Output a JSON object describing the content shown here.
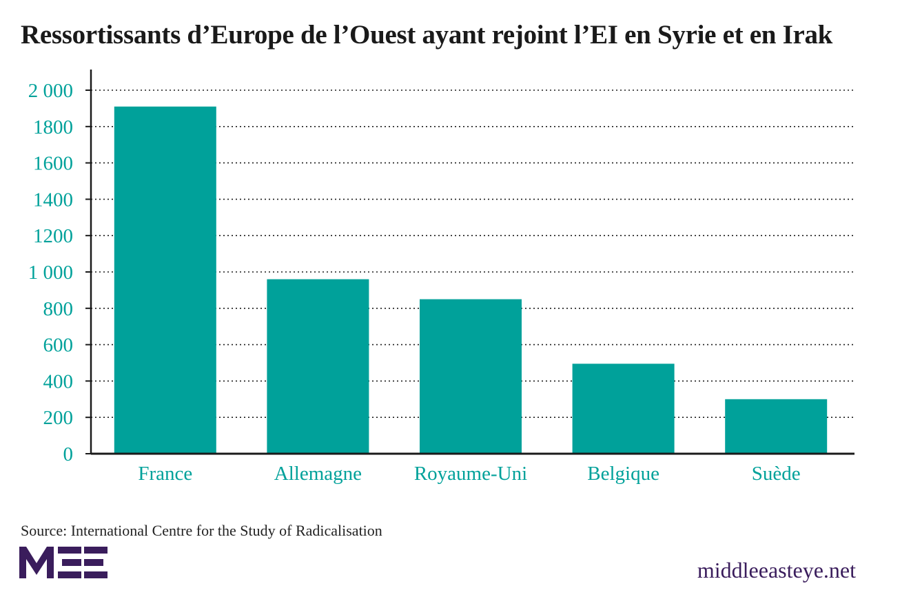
{
  "title": "Ressortissants d’Europe de l’Ouest ayant rejoint l’EI en Syrie et en Irak",
  "source": "Source: International Centre for the Study of Radicalisation",
  "logo_text": "MEE",
  "site": "middleeasteye.net",
  "colors": {
    "bar": "#00a19a",
    "tick_text": "#00a19a",
    "axis": "#1a1a1a",
    "grid": "#1a1a1a",
    "brand": "#3a1d5c"
  },
  "chart_data": {
    "type": "bar",
    "categories": [
      "France",
      "Allemagne",
      "Royaume-Uni",
      "Belgique",
      "Suède"
    ],
    "values": [
      1910,
      960,
      850,
      495,
      300
    ],
    "ylim": [
      0,
      2000
    ],
    "yticks": [
      0,
      200,
      400,
      600,
      800,
      1000,
      1200,
      1400,
      1600,
      1800,
      2000
    ],
    "ytick_labels": [
      "0",
      "200",
      "400",
      "600",
      "800",
      "1 000",
      "1200",
      "1400",
      "1600",
      "1800",
      "2 000"
    ],
    "title": "Ressortissants d’Europe de l’Ouest ayant rejoint l’EI en Syrie et en Irak",
    "xlabel": "",
    "ylabel": "",
    "grid": true,
    "legend": "none"
  }
}
